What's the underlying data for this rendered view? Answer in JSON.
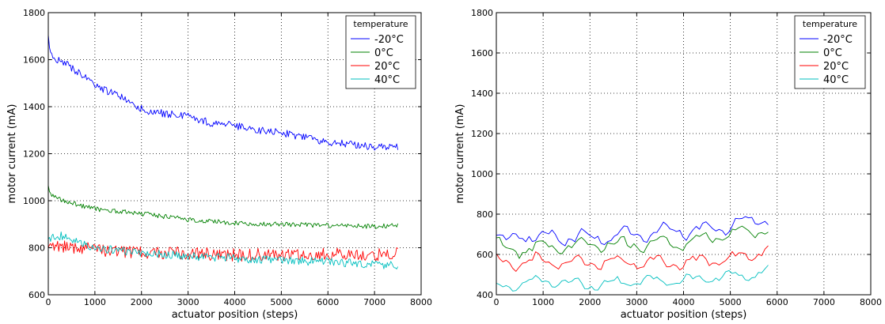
{
  "chart_data": [
    {
      "type": "line",
      "title": "",
      "xlabel": "actuator position (steps)",
      "ylabel": "motor current (mA)",
      "xlim": [
        0,
        8000
      ],
      "ylim": [
        600,
        1800
      ],
      "xticks": [
        0,
        1000,
        2000,
        3000,
        4000,
        5000,
        6000,
        7000,
        8000
      ],
      "yticks": [
        600,
        800,
        1000,
        1200,
        1400,
        1600,
        1800
      ],
      "grid": true,
      "legend": {
        "title": "temperature",
        "placement": "top-right"
      },
      "x_range": [
        0,
        7500
      ],
      "series": [
        {
          "name": "-20°C",
          "color": "#0000ff",
          "noise": 16,
          "x": [
            0,
            40,
            300,
            700,
            1000,
            1200,
            1500,
            1700,
            2000,
            2200,
            2500,
            3000,
            3500,
            4000,
            4500,
            5000,
            5500,
            6000,
            6500,
            7000,
            7500
          ],
          "y": [
            1690,
            1620,
            1590,
            1540,
            1490,
            1470,
            1450,
            1420,
            1390,
            1380,
            1370,
            1360,
            1330,
            1320,
            1300,
            1290,
            1270,
            1250,
            1240,
            1230,
            1230
          ]
        },
        {
          "name": "0°C",
          "color": "#008000",
          "noise": 10,
          "x": [
            0,
            30,
            300,
            700,
            1000,
            2000,
            3000,
            4000,
            5000,
            6000,
            7000,
            7500
          ],
          "y": [
            1070,
            1030,
            1000,
            980,
            965,
            945,
            920,
            905,
            900,
            895,
            890,
            895
          ]
        },
        {
          "name": "20°C",
          "color": "#ff0000",
          "noise": 28,
          "x": [
            0,
            500,
            1000,
            2000,
            3000,
            4000,
            5000,
            6000,
            7000,
            7500
          ],
          "y": [
            810,
            805,
            790,
            780,
            775,
            770,
            770,
            775,
            770,
            775
          ]
        },
        {
          "name": "40°C",
          "color": "#00bfbf",
          "noise": 18,
          "x": [
            0,
            300,
            500,
            1000,
            2000,
            3000,
            4000,
            5000,
            6000,
            7000,
            7500
          ],
          "y": [
            840,
            850,
            830,
            800,
            780,
            765,
            755,
            745,
            740,
            730,
            725
          ]
        }
      ]
    },
    {
      "type": "line",
      "title": "",
      "xlabel": "actuator position (steps)",
      "ylabel": "motor current (mA)",
      "xlim": [
        0,
        8000
      ],
      "ylim": [
        400,
        1800
      ],
      "xticks": [
        0,
        1000,
        2000,
        3000,
        4000,
        5000,
        6000,
        7000,
        8000
      ],
      "yticks": [
        400,
        600,
        800,
        1000,
        1200,
        1400,
        1600,
        1800
      ],
      "grid": true,
      "legend": {
        "title": "temperature",
        "placement": "top-right"
      },
      "x_range": [
        0,
        5850
      ],
      "series": [
        {
          "name": "-20°C",
          "color": "#0000ff",
          "noise": 14,
          "x": [
            0,
            200,
            500,
            1000,
            2000,
            3000,
            4000,
            4500,
            5000,
            5500,
            5850
          ],
          "y": [
            700,
            650,
            700,
            690,
            680,
            700,
            720,
            720,
            750,
            760,
            790
          ]
        },
        {
          "name": "0°C",
          "color": "#008000",
          "noise": 12,
          "x": [
            0,
            300,
            1000,
            2000,
            3000,
            4000,
            4500,
            5000,
            5500,
            5850
          ],
          "y": [
            650,
            620,
            640,
            650,
            650,
            660,
            680,
            700,
            720,
            720
          ]
        },
        {
          "name": "20°C",
          "color": "#ff0000",
          "noise": 12,
          "x": [
            0,
            300,
            1000,
            2000,
            3000,
            4000,
            5000,
            5500,
            5850
          ],
          "y": [
            560,
            560,
            570,
            560,
            560,
            560,
            580,
            600,
            640
          ]
        },
        {
          "name": "40°C",
          "color": "#00bfbf",
          "noise": 10,
          "x": [
            0,
            500,
            1000,
            2000,
            3000,
            4000,
            5000,
            5500,
            5850
          ],
          "y": [
            440,
            450,
            470,
            450,
            470,
            470,
            490,
            500,
            530
          ]
        }
      ]
    }
  ]
}
